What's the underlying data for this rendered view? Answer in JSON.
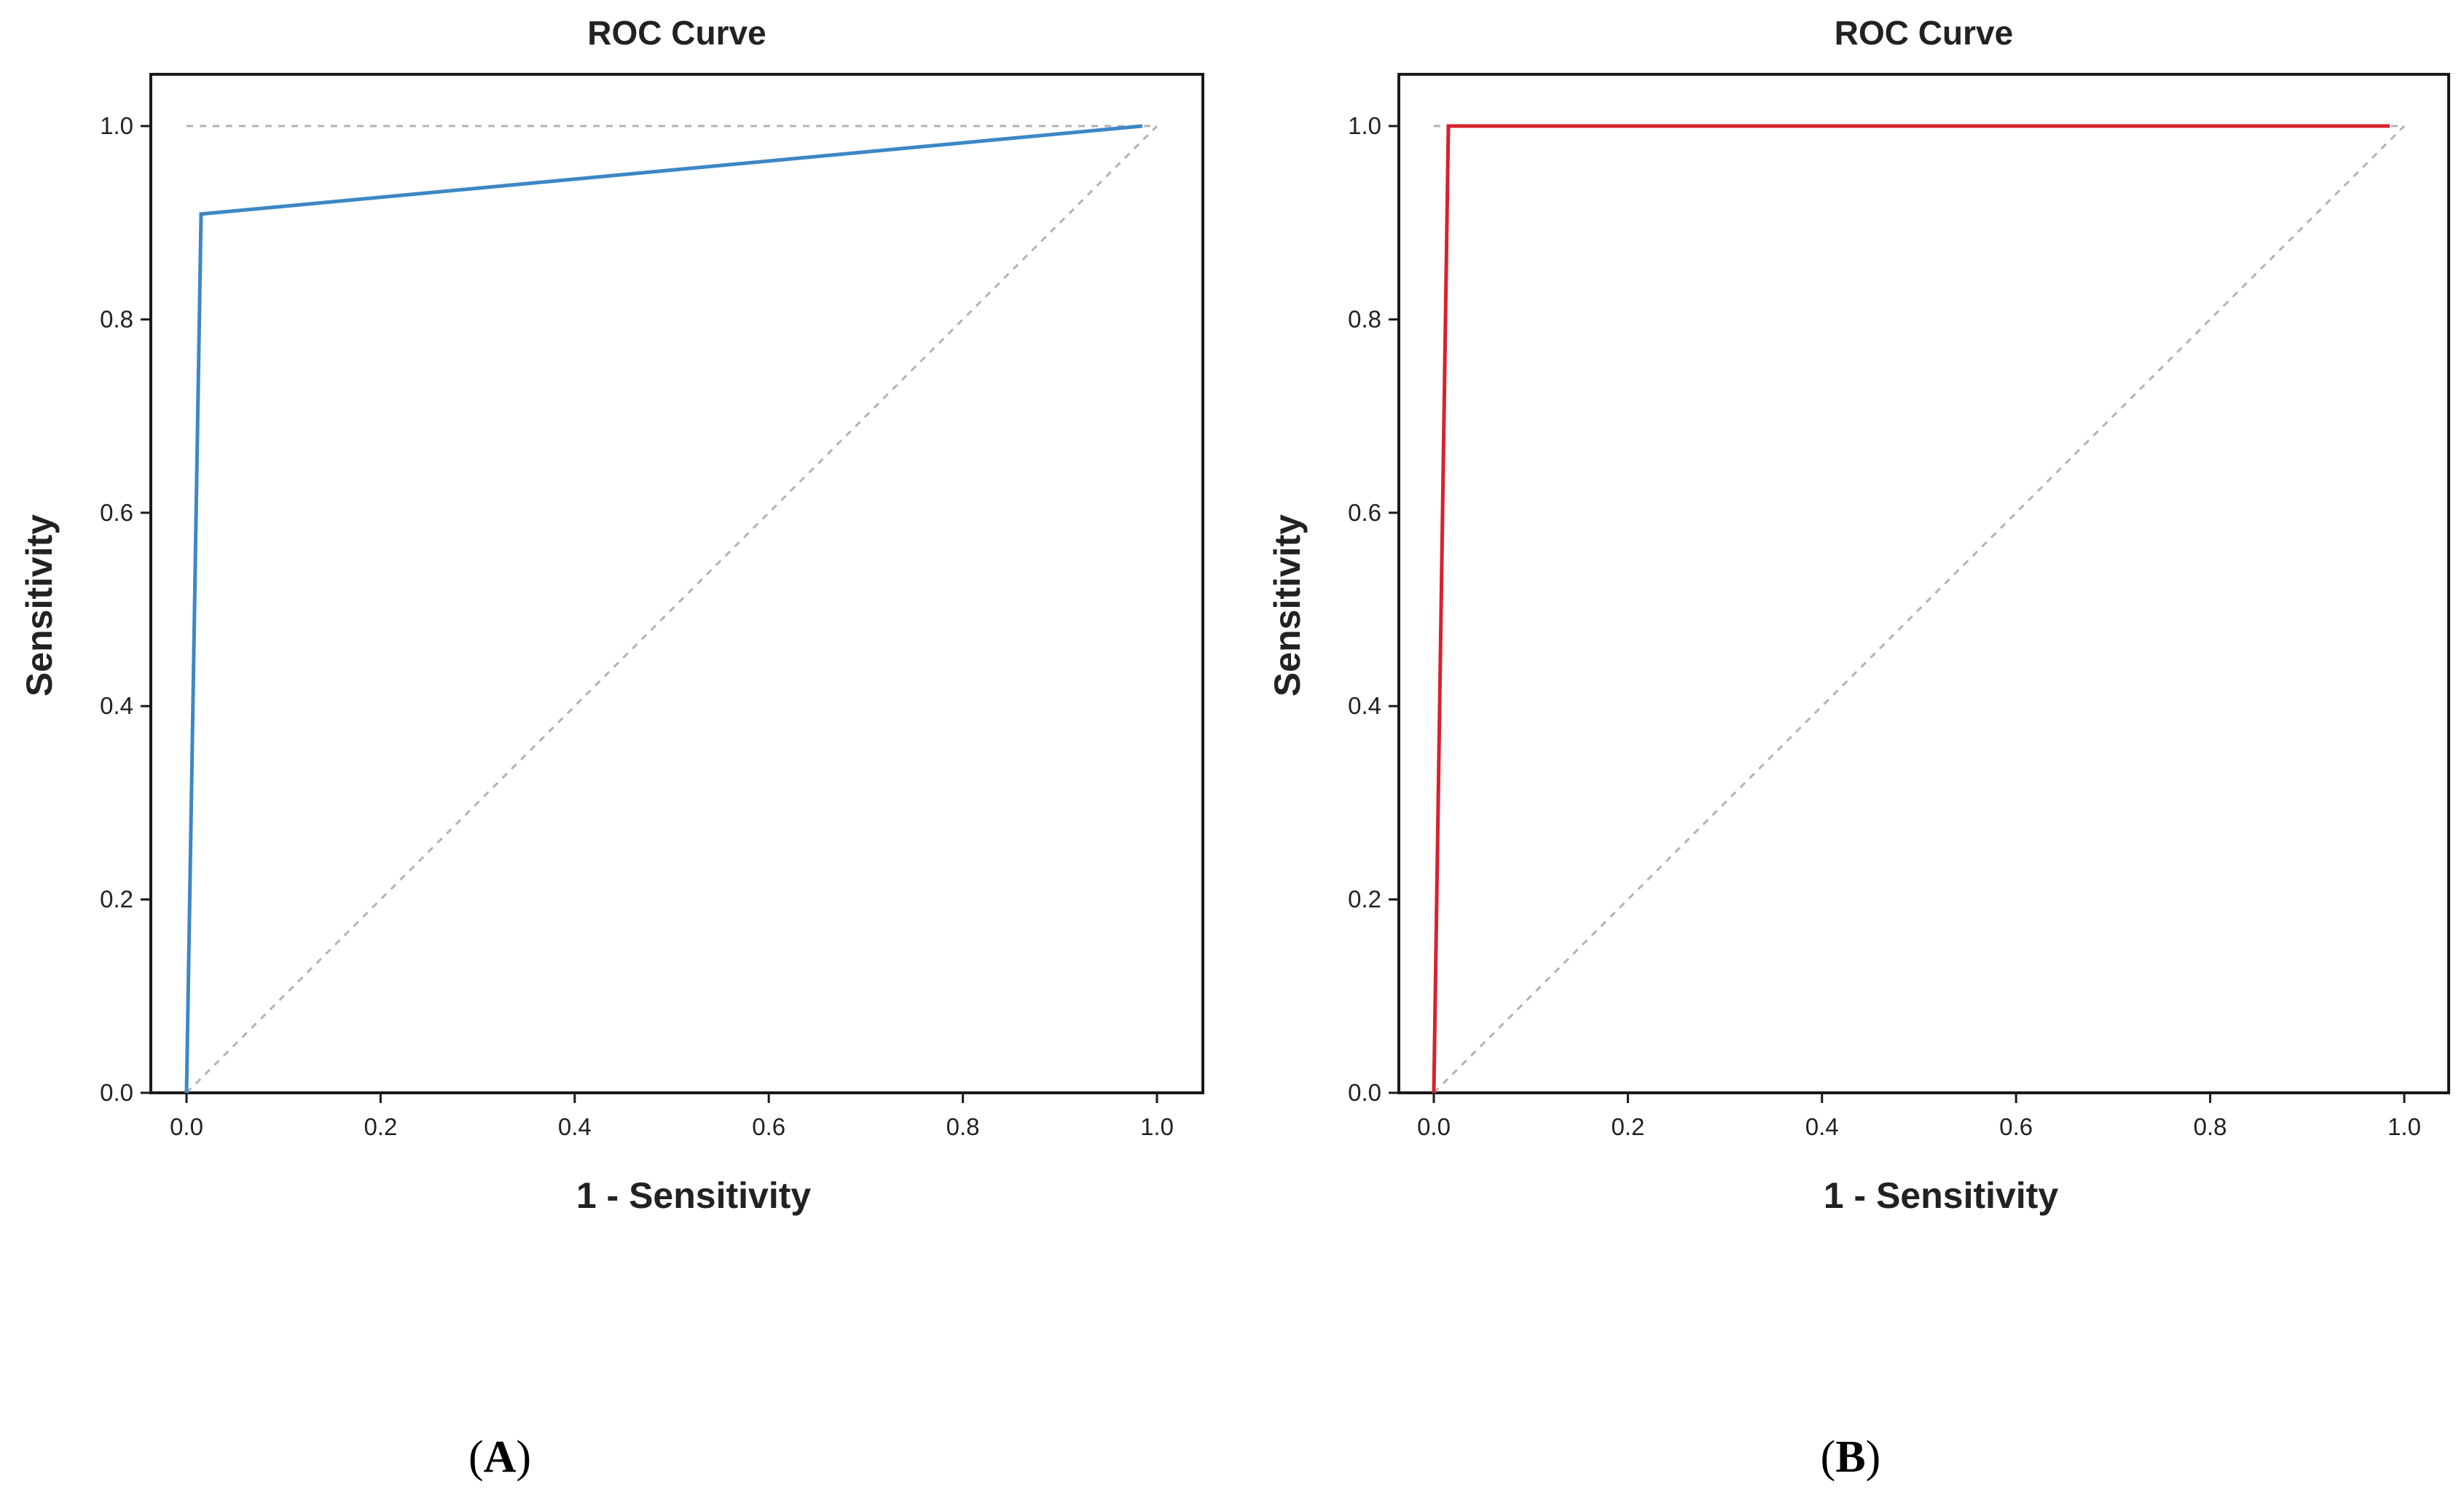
{
  "chart_data": [
    {
      "type": "line",
      "title": "ROC Curve",
      "xlabel": "1 - Sensitivity",
      "ylabel": "Sensitivity",
      "xlim": [
        0,
        1
      ],
      "ylim": [
        0,
        1
      ],
      "x_ticks": [
        "0.0",
        "0.2",
        "0.4",
        "0.6",
        "0.8",
        "1.0"
      ],
      "y_ticks": [
        "0.0",
        "0.2",
        "0.4",
        "0.6",
        "0.8",
        "1.0"
      ],
      "panel": {
        "open": "(",
        "letter": "A",
        "close": ")"
      },
      "series": [
        {
          "name": "ROC",
          "color": "#3d87c5",
          "x": [
            0.0,
            0.015,
            0.985
          ],
          "y": [
            0.0,
            0.909,
            1.0
          ]
        }
      ],
      "reference_lines": [
        {
          "name": "diagonal",
          "x": [
            0,
            1
          ],
          "y": [
            0,
            1
          ]
        },
        {
          "name": "top",
          "x": [
            0,
            1
          ],
          "y": [
            1,
            1
          ]
        }
      ]
    },
    {
      "type": "line",
      "title": "ROC Curve",
      "xlabel": "1 - Sensitivity",
      "ylabel": "Sensitivity",
      "xlim": [
        0,
        1
      ],
      "ylim": [
        0,
        1
      ],
      "x_ticks": [
        "0.0",
        "0.2",
        "0.4",
        "0.6",
        "0.8",
        "1.0"
      ],
      "y_ticks": [
        "0.0",
        "0.2",
        "0.4",
        "0.6",
        "0.8",
        "1.0"
      ],
      "panel": {
        "open": "(",
        "letter": "B",
        "close": ")"
      },
      "series": [
        {
          "name": "ROC",
          "color": "#d9212e",
          "x": [
            0.0,
            0.015,
            0.985
          ],
          "y": [
            0.0,
            1.0,
            1.0
          ]
        }
      ],
      "reference_lines": [
        {
          "name": "diagonal",
          "x": [
            0,
            1
          ],
          "y": [
            0,
            1
          ]
        },
        {
          "name": "top",
          "x": [
            0,
            1
          ],
          "y": [
            1,
            1
          ]
        }
      ]
    }
  ]
}
